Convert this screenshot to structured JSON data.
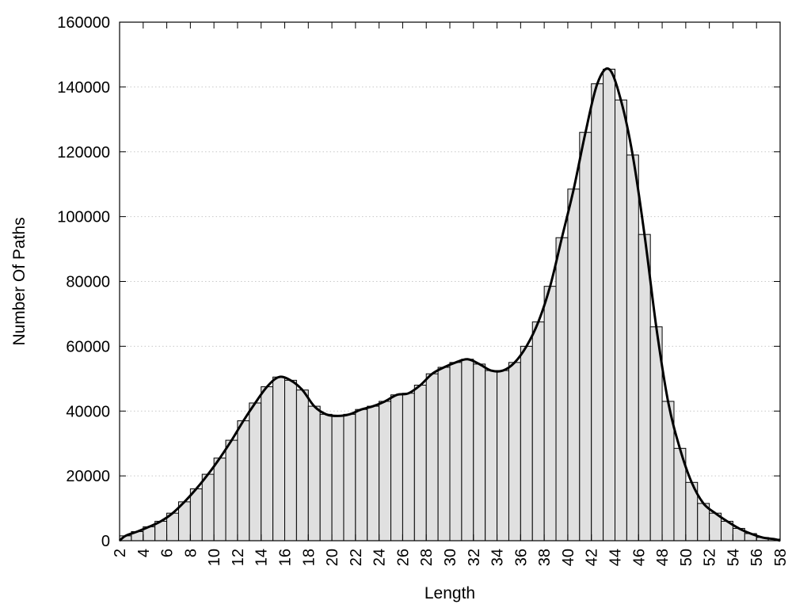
{
  "chart_data": {
    "type": "bar",
    "title": "",
    "xlabel": "Length",
    "ylabel": "Number Of Paths",
    "xlim": [
      2,
      58
    ],
    "ylim": [
      0,
      160000
    ],
    "x_ticks": [
      2,
      4,
      6,
      8,
      10,
      12,
      14,
      16,
      18,
      20,
      22,
      24,
      26,
      28,
      30,
      32,
      34,
      36,
      38,
      40,
      42,
      44,
      46,
      48,
      50,
      52,
      54,
      56,
      58
    ],
    "y_ticks": [
      0,
      20000,
      40000,
      60000,
      80000,
      100000,
      120000,
      140000,
      160000
    ],
    "grid": "horizontal dotted",
    "legend": "none",
    "bar_color": "#e0e0e0",
    "line_color": "#000000",
    "categories": [
      2,
      3,
      4,
      5,
      6,
      7,
      8,
      9,
      10,
      11,
      12,
      13,
      14,
      15,
      16,
      17,
      18,
      19,
      20,
      21,
      22,
      23,
      24,
      25,
      26,
      27,
      28,
      29,
      30,
      31,
      32,
      33,
      34,
      35,
      36,
      37,
      38,
      39,
      40,
      41,
      42,
      43,
      44,
      45,
      46,
      47,
      48,
      49,
      50,
      51,
      52,
      53,
      54,
      55,
      56,
      57
    ],
    "values": [
      1500,
      2800,
      4300,
      6000,
      8500,
      12000,
      16000,
      20500,
      25500,
      31000,
      37000,
      42500,
      47500,
      50500,
      49500,
      46500,
      41500,
      39000,
      38500,
      39000,
      40500,
      41500,
      43000,
      45000,
      45500,
      48000,
      51500,
      53500,
      55000,
      56000,
      54500,
      52500,
      52500,
      55000,
      60000,
      67500,
      78500,
      93500,
      108500,
      126000,
      141000,
      145500,
      136000,
      119000,
      94500,
      66000,
      43000,
      28500,
      18000,
      11500,
      8500,
      6000,
      3800,
      2200,
      1000,
      500
    ]
  }
}
